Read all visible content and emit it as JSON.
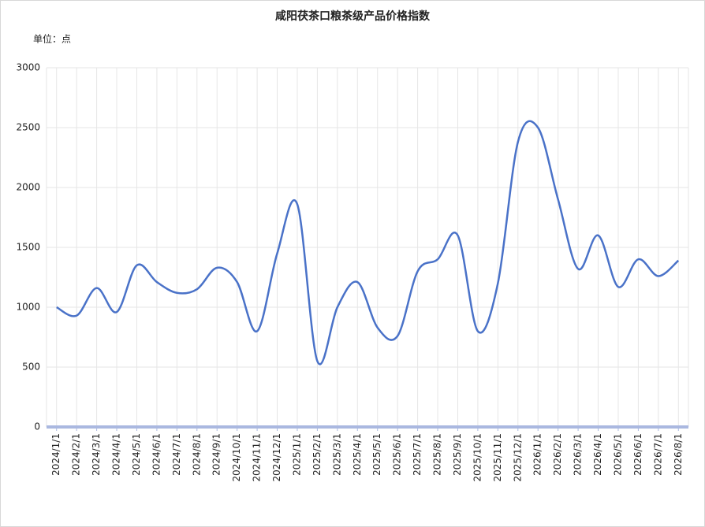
{
  "chart_data": {
    "type": "line",
    "title": "咸阳茯茶口粮茶级产品价格指数",
    "unit_label": "单位：点",
    "categories": [
      "2024/1/1",
      "2024/2/1",
      "2024/3/1",
      "2024/4/1",
      "2024/5/1",
      "2024/6/1",
      "2024/7/1",
      "2024/8/1",
      "2024/9/1",
      "2024/10/1",
      "2024/11/1",
      "2024/12/1",
      "2025/1/1",
      "2025/2/1",
      "2025/3/1",
      "2025/4/1",
      "2025/5/1",
      "2025/6/1",
      "2025/7/1",
      "2025/8/1",
      "2025/9/1",
      "2025/10/1",
      "2025/11/1",
      "2025/12/1",
      "2026/1/1",
      "2026/2/1",
      "2026/3/1",
      "2026/4/1",
      "2026/5/1",
      "2026/6/1",
      "2026/7/1",
      "2026/8/1"
    ],
    "values": [
      1000,
      930,
      1160,
      960,
      1350,
      1210,
      1120,
      1150,
      1330,
      1210,
      800,
      1450,
      1860,
      550,
      1000,
      1210,
      830,
      760,
      1300,
      1400,
      1600,
      800,
      1200,
      2380,
      2500,
      1900,
      1320,
      1600,
      1170,
      1400,
      1260,
      1390
    ],
    "color": "#4a72c8",
    "smooth": true,
    "ylim": [
      0,
      3000
    ],
    "yticks": [
      0,
      500,
      1000,
      1500,
      2000,
      2500,
      3000
    ],
    "grid": true
  }
}
